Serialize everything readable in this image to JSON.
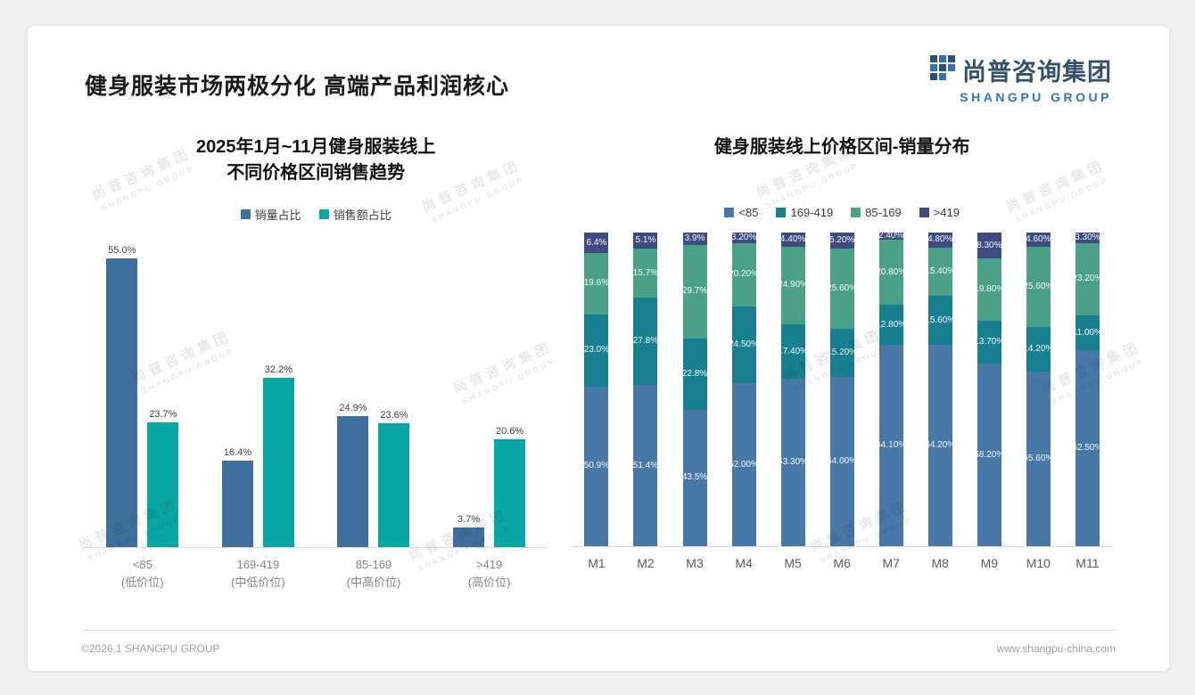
{
  "page": {
    "title": "健身服装市场两极分化 高端产品利润核心",
    "logo": {
      "cn": "尚普咨询集团",
      "en": "SHANGPU GROUP"
    },
    "footer": {
      "left": "©2026.1 SHANGPU GROUP",
      "right": "www.shangpu-china.com"
    },
    "watermark": {
      "cn": "尚普咨询集团",
      "en": "SHANGPU GROUP"
    }
  },
  "colors": {
    "volume_blue": "#3f6f9d",
    "amount_teal": "#09a6a3",
    "stack_lt85_blue": "#4878a8",
    "stack_169_419_teal": "#177f8f",
    "stack_85_169_green": "#4ba188",
    "stack_gt419_navy": "#3e4c82",
    "axis_line": "#d9d9d9"
  },
  "chart_data": [
    {
      "type": "bar",
      "title": "2025年1月~11月健身服装线上 不同价格区间销售趋势",
      "title_lines": [
        "2025年1月~11月健身服装线上",
        "不同价格区间销售趋势"
      ],
      "categories": [
        "<85",
        "169-419",
        "85-169",
        ">419"
      ],
      "category_sublabels": [
        "(低价位)",
        "(中低价位)",
        "(中高价位)",
        "(高价位)"
      ],
      "series": [
        {
          "name": "销量占比",
          "color": "#3f6f9d",
          "values": [
            55.0,
            16.4,
            24.9,
            3.7
          ],
          "labels": [
            "55.0%",
            "16.4%",
            "24.9%",
            "3.7%"
          ]
        },
        {
          "name": "销售额占比",
          "color": "#09a6a3",
          "values": [
            23.7,
            32.2,
            23.6,
            20.6
          ],
          "labels": [
            "23.7%",
            "32.2%",
            "23.6%",
            "20.6%"
          ]
        }
      ],
      "xlabel": "",
      "ylabel": "",
      "ylim": [
        0,
        60
      ],
      "grid": false,
      "legend_position": "top"
    },
    {
      "type": "stacked-bar",
      "title": "健身服装线上价格区间-销量分布",
      "categories": [
        "M1",
        "M2",
        "M3",
        "M4",
        "M5",
        "M6",
        "M7",
        "M8",
        "M9",
        "M10",
        "M11"
      ],
      "series": [
        {
          "name": "<85",
          "color": "#4878a8",
          "values": [
            50.9,
            51.4,
            43.5,
            52.0,
            53.3,
            54.0,
            64.1,
            64.2,
            58.2,
            55.6,
            62.5
          ],
          "labels": [
            "50.9%",
            "51.4%",
            "43.5%",
            "52.00%",
            "53.30%",
            "54.00%",
            "64.10%",
            "64.20%",
            "58.20%",
            "55.60%",
            "62.50%"
          ]
        },
        {
          "name": "169-419",
          "color": "#177f8f",
          "values": [
            23.0,
            27.8,
            22.8,
            24.5,
            17.4,
            15.2,
            12.8,
            15.6,
            13.7,
            14.2,
            11.0
          ],
          "labels": [
            "23.0%",
            "27.8%",
            "22.8%",
            "24.50%",
            "17.40%",
            "15.20%",
            "12.80%",
            "15.60%",
            "13.70%",
            "14.20%",
            "11.00%"
          ]
        },
        {
          "name": "85-169",
          "color": "#4ba188",
          "values": [
            19.6,
            15.7,
            29.7,
            20.2,
            24.9,
            25.6,
            20.8,
            15.4,
            19.8,
            25.6,
            23.2
          ],
          "labels": [
            "19.6%",
            "15.7%",
            "29.7%",
            "20.20%",
            "24.90%",
            "25.60%",
            "20.80%",
            "15.40%",
            "19.80%",
            "25.60%",
            "23.20%"
          ]
        },
        {
          "name": ">419",
          "color": "#3e4c82",
          "values": [
            6.4,
            5.1,
            3.9,
            3.2,
            4.4,
            5.2,
            2.4,
            4.8,
            8.3,
            4.6,
            3.3
          ],
          "labels": [
            "6.4%",
            "5.1%",
            "3.9%",
            "3.20%",
            "4.40%",
            "5.20%",
            "2.40%",
            "4.80%",
            "8.30%",
            "4.60%",
            "3.30%"
          ]
        }
      ],
      "xlabel": "",
      "ylabel": "",
      "ylim": [
        0,
        100
      ],
      "grid": false,
      "legend_position": "top"
    }
  ]
}
